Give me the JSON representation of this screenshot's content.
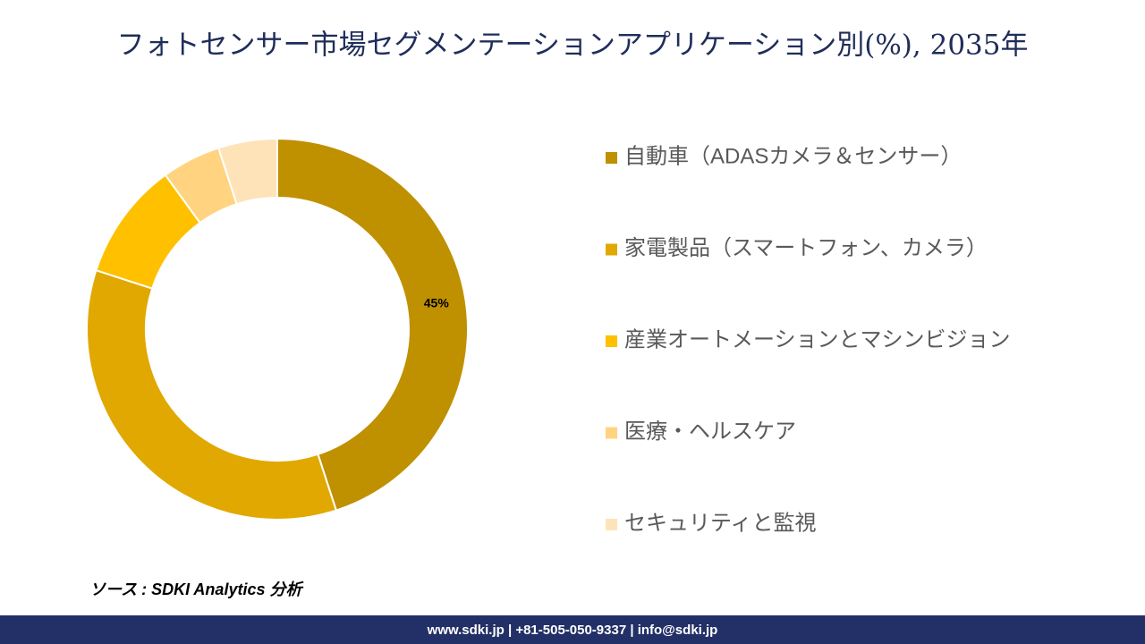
{
  "chart_data": {
    "type": "donut",
    "title": "フォトセンサー市場セグメンテーションアプリケーション別(%), 2035年",
    "categories": [
      "自動車（ADASカメラ＆センサー）",
      "家電製品（スマートフォン、カメラ）",
      "産業オートメーションとマシンビジョン",
      "医療・ヘルスケア",
      "セキュリティと監視"
    ],
    "values": [
      45,
      35,
      10,
      5,
      5
    ],
    "value_labels": [
      "45%",
      null,
      null,
      null,
      null
    ],
    "colors": [
      "#bf9000",
      "#e0a800",
      "#ffc000",
      "#ffd37f",
      "#ffe3b8"
    ]
  },
  "source": "ソース : SDKI Analytics 分析",
  "footer": "www.sdki.jp | +81-505-050-9337 | info@sdki.jp"
}
